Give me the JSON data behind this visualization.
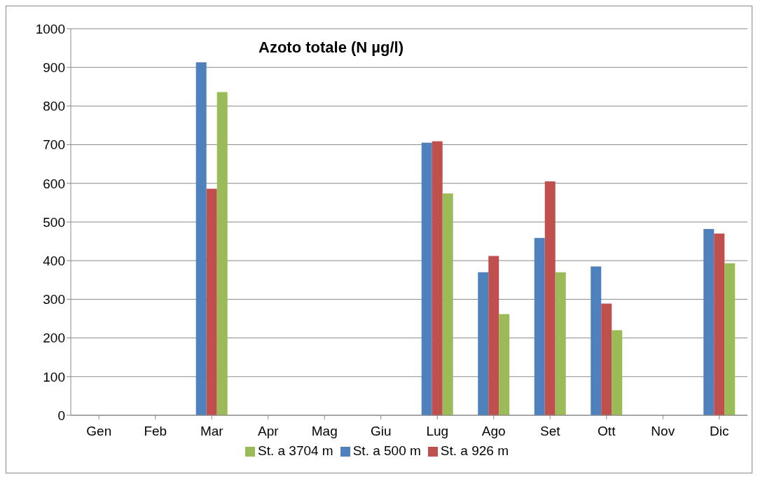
{
  "chart_data": {
    "type": "bar",
    "title": "Azoto totale (N µg/l)",
    "categories": [
      "Gen",
      "Feb",
      "Mar",
      "Apr",
      "Mag",
      "Giu",
      "Lug",
      "Ago",
      "Set",
      "Ott",
      "Nov",
      "Dic"
    ],
    "series": [
      {
        "name": "St. a 500 m",
        "color": "#4f81bd",
        "values": [
          null,
          null,
          913,
          null,
          null,
          null,
          705,
          370,
          459,
          385,
          null,
          482
        ]
      },
      {
        "name": "St. a 926 m",
        "color": "#c0504d",
        "values": [
          null,
          null,
          586,
          null,
          null,
          null,
          709,
          412,
          605,
          289,
          null,
          470
        ]
      },
      {
        "name": "St. a 3704 m",
        "color": "#9bbb59",
        "values": [
          null,
          null,
          836,
          null,
          null,
          null,
          574,
          262,
          370,
          220,
          null,
          393
        ]
      }
    ],
    "ylim": [
      0,
      1000
    ],
    "yticks": [
      0,
      100,
      200,
      300,
      400,
      500,
      600,
      700,
      800,
      900,
      1000
    ],
    "grid": "y",
    "legend": "bottom"
  }
}
